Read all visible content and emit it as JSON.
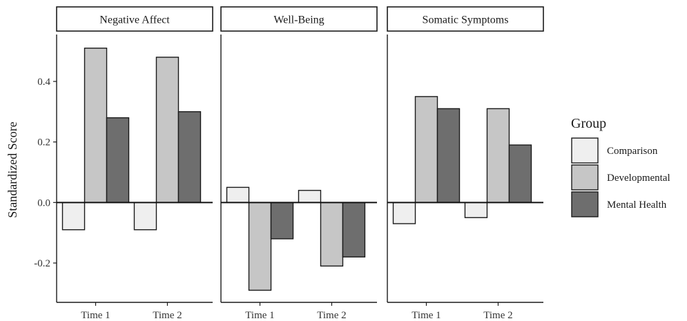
{
  "chart_data": {
    "type": "bar",
    "title": "",
    "ylabel": "Standardized Score",
    "xlabel": "",
    "ylim": [
      -0.33,
      0.555
    ],
    "y_ticks": [
      -0.2,
      0.0,
      0.2,
      0.4
    ],
    "y_tick_labels": [
      "-0.2",
      "0.0",
      "0.2",
      "0.4"
    ],
    "categories": [
      "Time 1",
      "Time 2"
    ],
    "zero_line": true,
    "grid": false,
    "legend": {
      "title": "Group",
      "placement": "right",
      "entries": [
        "Comparison",
        "Developmental",
        "Mental Health"
      ]
    },
    "colors": {
      "Comparison": "#efefef",
      "Developmental": "#c6c6c6",
      "Mental Health": "#6e6e6e"
    },
    "panels": [
      {
        "title": "Negative Affect",
        "series": [
          {
            "name": "Comparison",
            "values": [
              -0.09,
              -0.09
            ]
          },
          {
            "name": "Developmental",
            "values": [
              0.51,
              0.48
            ]
          },
          {
            "name": "Mental Health",
            "values": [
              0.28,
              0.3
            ]
          }
        ]
      },
      {
        "title": "Well-Being",
        "series": [
          {
            "name": "Comparison",
            "values": [
              0.05,
              0.04
            ]
          },
          {
            "name": "Developmental",
            "values": [
              -0.29,
              -0.21
            ]
          },
          {
            "name": "Mental Health",
            "values": [
              -0.12,
              -0.18
            ]
          }
        ]
      },
      {
        "title": "Somatic Symptoms",
        "series": [
          {
            "name": "Comparison",
            "values": [
              -0.07,
              -0.05
            ]
          },
          {
            "name": "Developmental",
            "values": [
              0.35,
              0.31
            ]
          },
          {
            "name": "Mental Health",
            "values": [
              0.31,
              0.19
            ]
          }
        ]
      }
    ]
  }
}
